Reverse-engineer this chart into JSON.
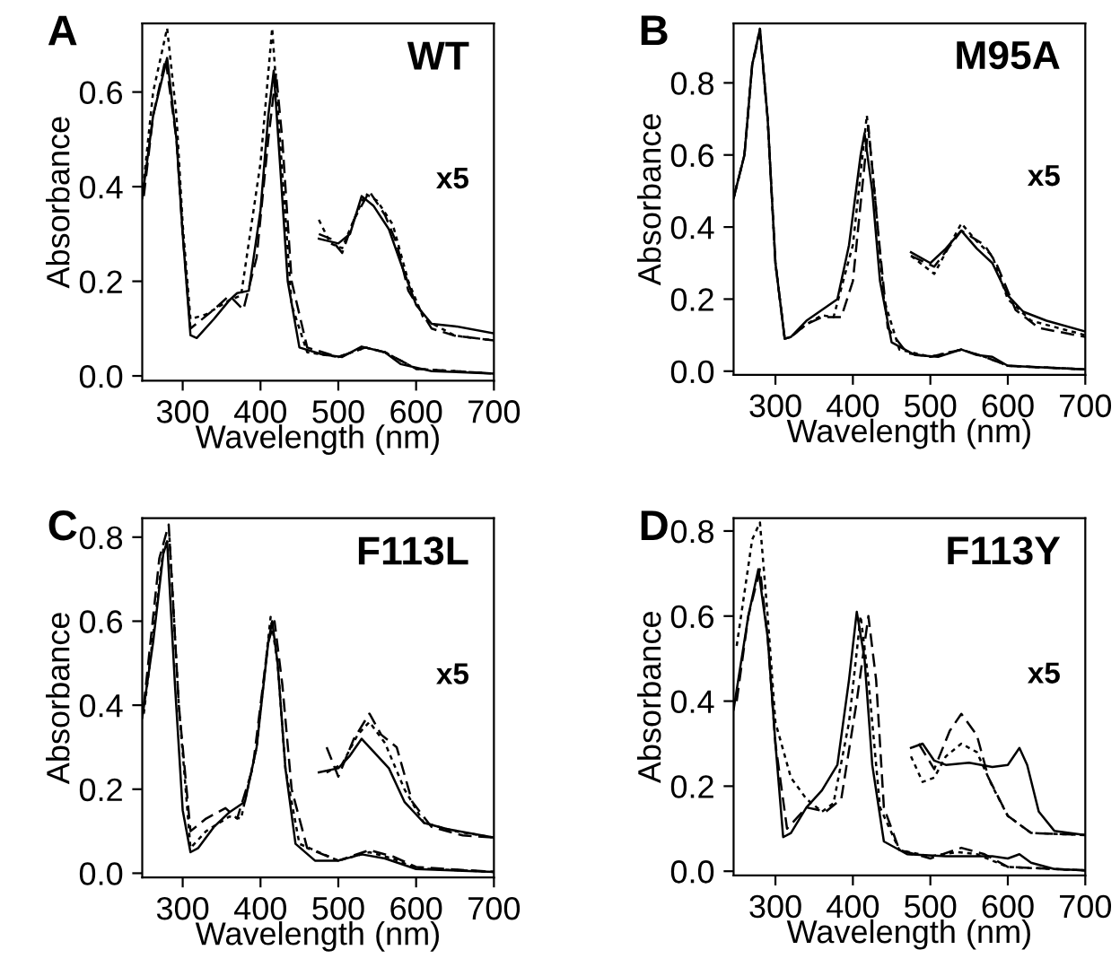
{
  "chart_data": [
    {
      "type": "line",
      "title": "WT",
      "xlabel": "Wavelength (nm)",
      "ylabel": "Absorbance",
      "annotations": [
        "A",
        "x5"
      ],
      "xlim": [
        248,
        700
      ],
      "ylim": [
        -0.01,
        0.745
      ],
      "xticks": [
        300,
        400,
        500,
        600,
        700
      ],
      "yticks": [
        {
          "value": 0,
          "label": "0.0"
        },
        {
          "value": 0.2,
          "label": "0.2"
        },
        {
          "value": 0.4,
          "label": "0.4"
        },
        {
          "value": 0.6,
          "label": "0.6"
        }
      ],
      "series": [
        {
          "type": "line",
          "color": "#000000",
          "line_style": "solid",
          "x": [
            248,
            262,
            280,
            292,
            300,
            310,
            318,
            340,
            360,
            370,
            385,
            400,
            410,
            417,
            425,
            435,
            450,
            480,
            505,
            530,
            560,
            580,
            620,
            700
          ],
          "values": [
            0.376,
            0.55,
            0.672,
            0.5,
            0.3,
            0.086,
            0.08,
            0.12,
            0.16,
            0.175,
            0.18,
            0.35,
            0.55,
            0.645,
            0.45,
            0.2,
            0.06,
            0.045,
            0.04,
            0.062,
            0.05,
            0.025,
            0.01,
            0.005
          ]
        },
        {
          "type": "line",
          "color": "#000000",
          "line_style": "dotted",
          "x": [
            248,
            262,
            280,
            292,
            300,
            310,
            330,
            360,
            375,
            400,
            415,
            425,
            440,
            460,
            500,
            535,
            560,
            600,
            700
          ],
          "values": [
            0.38,
            0.6,
            0.735,
            0.55,
            0.32,
            0.12,
            0.13,
            0.16,
            0.17,
            0.45,
            0.735,
            0.5,
            0.15,
            0.05,
            0.04,
            0.06,
            0.05,
            0.015,
            0.005
          ]
        },
        {
          "type": "line",
          "color": "#000000",
          "line_style": "dashed",
          "x": [
            250,
            262,
            278,
            292,
            300,
            310,
            340,
            360,
            378,
            395,
            410,
            420,
            428,
            440,
            460,
            500,
            535,
            560,
            600,
            700
          ],
          "values": [
            0.38,
            0.55,
            0.67,
            0.5,
            0.3,
            0.1,
            0.14,
            0.17,
            0.14,
            0.25,
            0.5,
            0.64,
            0.5,
            0.2,
            0.06,
            0.04,
            0.06,
            0.05,
            0.015,
            0.005
          ]
        },
        {
          "type": "line",
          "color": "#000000",
          "line_style": "solid",
          "x": [
            475,
            500,
            515,
            530,
            545,
            565,
            580,
            600,
            620,
            650,
            700
          ],
          "values": [
            0.29,
            0.28,
            0.3,
            0.38,
            0.36,
            0.31,
            0.24,
            0.15,
            0.11,
            0.105,
            0.09
          ]
        },
        {
          "type": "line",
          "color": "#000000",
          "line_style": "dotted",
          "x": [
            475,
            490,
            505,
            520,
            535,
            550,
            570,
            590,
            610,
            650,
            700
          ],
          "values": [
            0.33,
            0.28,
            0.27,
            0.33,
            0.385,
            0.37,
            0.32,
            0.2,
            0.12,
            0.085,
            0.075
          ]
        },
        {
          "type": "line",
          "color": "#000000",
          "line_style": "dashed",
          "x": [
            475,
            490,
            505,
            520,
            540,
            560,
            575,
            590,
            620,
            650,
            700
          ],
          "values": [
            0.3,
            0.29,
            0.26,
            0.33,
            0.39,
            0.34,
            0.28,
            0.18,
            0.1,
            0.085,
            0.075
          ]
        }
      ]
    },
    {
      "type": "line",
      "title": "M95A",
      "xlabel": "Wavelength (nm)",
      "ylabel": "Absorbance",
      "annotations": [
        "B",
        "x5"
      ],
      "xlim": [
        246,
        700
      ],
      "ylim": [
        -0.01,
        0.965
      ],
      "xticks": [
        300,
        400,
        500,
        600,
        700
      ],
      "yticks": [
        {
          "value": 0,
          "label": "0.0"
        },
        {
          "value": 0.2,
          "label": "0.2"
        },
        {
          "value": 0.4,
          "label": "0.4"
        },
        {
          "value": 0.6,
          "label": "0.6"
        },
        {
          "value": 0.8,
          "label": "0.8"
        }
      ],
      "series": [
        {
          "type": "line",
          "color": "#000000",
          "line_style": "solid",
          "x": [
            246,
            260,
            270,
            280,
            290,
            300,
            312,
            320,
            340,
            360,
            380,
            395,
            410,
            415,
            425,
            435,
            450,
            480,
            510,
            540,
            560,
            580,
            600,
            700
          ],
          "values": [
            0.48,
            0.6,
            0.85,
            0.95,
            0.7,
            0.3,
            0.09,
            0.095,
            0.14,
            0.17,
            0.2,
            0.35,
            0.6,
            0.66,
            0.5,
            0.25,
            0.08,
            0.045,
            0.04,
            0.06,
            0.045,
            0.04,
            0.015,
            0.005
          ]
        },
        {
          "type": "line",
          "color": "#000000",
          "line_style": "dotted",
          "x": [
            246,
            260,
            270,
            280,
            290,
            300,
            312,
            320,
            340,
            360,
            375,
            400,
            418,
            428,
            440,
            460,
            500,
            540,
            570,
            600,
            700
          ],
          "values": [
            0.48,
            0.6,
            0.85,
            0.95,
            0.7,
            0.3,
            0.09,
            0.095,
            0.13,
            0.155,
            0.15,
            0.35,
            0.71,
            0.5,
            0.2,
            0.06,
            0.04,
            0.06,
            0.04,
            0.015,
            0.005
          ]
        },
        {
          "type": "line",
          "color": "#000000",
          "line_style": "dashed",
          "x": [
            246,
            260,
            270,
            280,
            290,
            300,
            312,
            320,
            340,
            360,
            385,
            400,
            420,
            432,
            445,
            470,
            500,
            540,
            570,
            600,
            700
          ],
          "values": [
            0.48,
            0.6,
            0.85,
            0.94,
            0.7,
            0.3,
            0.09,
            0.095,
            0.13,
            0.15,
            0.15,
            0.25,
            0.68,
            0.4,
            0.12,
            0.05,
            0.04,
            0.06,
            0.04,
            0.015,
            0.005
          ]
        },
        {
          "type": "line",
          "color": "#000000",
          "line_style": "solid",
          "x": [
            475,
            500,
            520,
            540,
            560,
            580,
            600,
            620,
            650,
            700
          ],
          "values": [
            0.33,
            0.3,
            0.34,
            0.39,
            0.34,
            0.3,
            0.21,
            0.165,
            0.14,
            0.11
          ]
        },
        {
          "type": "line",
          "color": "#000000",
          "line_style": "dotted",
          "x": [
            475,
            505,
            525,
            540,
            560,
            580,
            600,
            630,
            700
          ],
          "values": [
            0.32,
            0.27,
            0.35,
            0.41,
            0.36,
            0.32,
            0.2,
            0.14,
            0.1
          ]
        },
        {
          "type": "line",
          "color": "#000000",
          "line_style": "dashed",
          "x": [
            475,
            505,
            540,
            570,
            585,
            610,
            640,
            700
          ],
          "values": [
            0.32,
            0.29,
            0.39,
            0.35,
            0.3,
            0.17,
            0.12,
            0.095
          ]
        }
      ]
    },
    {
      "type": "line",
      "title": "F113L",
      "xlabel": "Wavelength (nm)",
      "ylabel": "Absorbance",
      "annotations": [
        "C",
        "x5"
      ],
      "xlim": [
        248,
        700
      ],
      "ylim": [
        -0.01,
        0.845
      ],
      "xticks": [
        300,
        400,
        500,
        600,
        700
      ],
      "yticks": [
        {
          "value": 0,
          "label": "0.0"
        },
        {
          "value": 0.2,
          "label": "0.2"
        },
        {
          "value": 0.4,
          "label": "0.4"
        },
        {
          "value": 0.6,
          "label": "0.6"
        },
        {
          "value": 0.8,
          "label": "0.8"
        }
      ],
      "series": [
        {
          "type": "line",
          "color": "#000000",
          "line_style": "solid",
          "x": [
            248,
            262,
            275,
            280,
            290,
            300,
            310,
            320,
            340,
            360,
            380,
            395,
            410,
            415,
            422,
            432,
            445,
            470,
            500,
            530,
            560,
            600,
            700
          ],
          "values": [
            0.37,
            0.55,
            0.76,
            0.79,
            0.45,
            0.15,
            0.05,
            0.06,
            0.11,
            0.145,
            0.17,
            0.3,
            0.55,
            0.6,
            0.5,
            0.25,
            0.07,
            0.03,
            0.03,
            0.045,
            0.035,
            0.01,
            0.003
          ]
        },
        {
          "type": "line",
          "color": "#000000",
          "line_style": "dashed",
          "x": [
            250,
            270,
            282,
            295,
            310,
            330,
            355,
            370,
            390,
            410,
            418,
            428,
            440,
            460,
            500,
            540,
            570,
            600,
            700
          ],
          "values": [
            0.4,
            0.75,
            0.83,
            0.4,
            0.1,
            0.13,
            0.155,
            0.13,
            0.25,
            0.55,
            0.6,
            0.45,
            0.2,
            0.06,
            0.03,
            0.055,
            0.04,
            0.015,
            0.003
          ]
        },
        {
          "type": "line",
          "color": "#000000",
          "line_style": "dotted",
          "x": [
            250,
            275,
            283,
            295,
            310,
            330,
            360,
            375,
            395,
            413,
            422,
            432,
            450,
            500,
            540,
            570,
            600,
            700
          ],
          "values": [
            0.38,
            0.77,
            0.8,
            0.4,
            0.06,
            0.1,
            0.135,
            0.13,
            0.3,
            0.61,
            0.5,
            0.25,
            0.07,
            0.03,
            0.05,
            0.035,
            0.012,
            0.003
          ]
        },
        {
          "type": "line",
          "color": "#000000",
          "line_style": "solid",
          "x": [
            475,
            500,
            515,
            530,
            545,
            565,
            585,
            610,
            640,
            700
          ],
          "values": [
            0.24,
            0.25,
            0.28,
            0.32,
            0.29,
            0.25,
            0.17,
            0.12,
            0.105,
            0.085
          ]
        },
        {
          "type": "line",
          "color": "#000000",
          "line_style": "dashed",
          "x": [
            485,
            500,
            520,
            540,
            555,
            575,
            595,
            620,
            660,
            700
          ],
          "values": [
            0.3,
            0.23,
            0.32,
            0.38,
            0.33,
            0.3,
            0.17,
            0.11,
            0.09,
            0.085
          ]
        },
        {
          "type": "line",
          "color": "#000000",
          "line_style": "dotted",
          "x": [
            485,
            505,
            525,
            540,
            560,
            585,
            610,
            650,
            700
          ],
          "values": [
            0.24,
            0.26,
            0.33,
            0.36,
            0.31,
            0.2,
            0.12,
            0.1,
            0.085
          ]
        }
      ]
    },
    {
      "type": "line",
      "title": "F113Y",
      "xlabel": "Wavelength (nm)",
      "ylabel": "Absorbance",
      "annotations": [
        "D",
        "x5"
      ],
      "xlim": [
        246,
        700
      ],
      "ylim": [
        -0.01,
        0.83
      ],
      "xticks": [
        300,
        400,
        500,
        600,
        700
      ],
      "yticks": [
        {
          "value": 0,
          "label": "0.0"
        },
        {
          "value": 0.2,
          "label": "0.2"
        },
        {
          "value": 0.4,
          "label": "0.4"
        },
        {
          "value": 0.6,
          "label": "0.6"
        },
        {
          "value": 0.8,
          "label": "0.8"
        }
      ],
      "series": [
        {
          "type": "line",
          "color": "#000000",
          "line_style": "solid",
          "x": [
            246,
            265,
            278,
            290,
            300,
            310,
            320,
            340,
            360,
            380,
            395,
            405,
            415,
            425,
            440,
            470,
            520,
            580,
            600,
            615,
            630,
            660,
            700
          ],
          "values": [
            0.38,
            0.6,
            0.71,
            0.55,
            0.3,
            0.08,
            0.09,
            0.15,
            0.19,
            0.25,
            0.45,
            0.61,
            0.5,
            0.25,
            0.07,
            0.04,
            0.035,
            0.035,
            0.03,
            0.04,
            0.02,
            0.005,
            0.002
          ]
        },
        {
          "type": "line",
          "color": "#000000",
          "line_style": "dotted",
          "x": [
            250,
            270,
            280,
            290,
            300,
            320,
            340,
            360,
            375,
            395,
            410,
            420,
            435,
            460,
            500,
            535,
            560,
            600,
            700
          ],
          "values": [
            0.53,
            0.78,
            0.82,
            0.6,
            0.35,
            0.22,
            0.17,
            0.14,
            0.16,
            0.35,
            0.6,
            0.45,
            0.15,
            0.05,
            0.035,
            0.045,
            0.04,
            0.01,
            0.002
          ]
        },
        {
          "type": "line",
          "color": "#000000",
          "line_style": "dashed",
          "x": [
            250,
            265,
            280,
            290,
            300,
            315,
            340,
            365,
            385,
            405,
            420,
            430,
            440,
            460,
            500,
            540,
            570,
            600,
            700
          ],
          "values": [
            0.4,
            0.6,
            0.71,
            0.55,
            0.3,
            0.1,
            0.15,
            0.14,
            0.17,
            0.4,
            0.6,
            0.45,
            0.15,
            0.05,
            0.03,
            0.055,
            0.04,
            0.01,
            0.002
          ]
        },
        {
          "type": "line",
          "color": "#000000",
          "line_style": "solid",
          "x": [
            475,
            490,
            505,
            520,
            550,
            580,
            600,
            615,
            625,
            640,
            660,
            700
          ],
          "values": [
            0.29,
            0.3,
            0.26,
            0.25,
            0.255,
            0.245,
            0.25,
            0.29,
            0.25,
            0.14,
            0.095,
            0.085
          ]
        },
        {
          "type": "line",
          "color": "#000000",
          "line_style": "dotted",
          "x": [
            475,
            490,
            505,
            520,
            540,
            560,
            580,
            600,
            630,
            700
          ],
          "values": [
            0.27,
            0.21,
            0.22,
            0.27,
            0.3,
            0.28,
            0.2,
            0.13,
            0.09,
            0.085
          ]
        },
        {
          "type": "line",
          "color": "#000000",
          "line_style": "dashed",
          "x": [
            485,
            505,
            525,
            540,
            560,
            575,
            600,
            630,
            700
          ],
          "values": [
            0.3,
            0.24,
            0.33,
            0.37,
            0.32,
            0.22,
            0.13,
            0.09,
            0.085
          ]
        }
      ]
    }
  ]
}
